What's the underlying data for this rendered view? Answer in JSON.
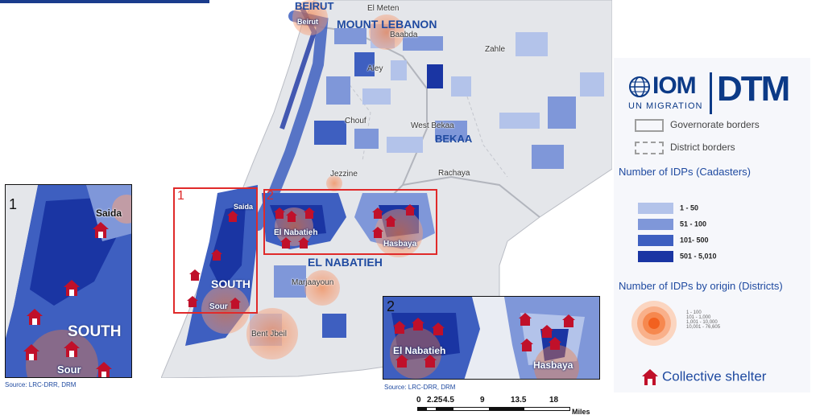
{
  "map_labels": {
    "beirut_top": "BEIRUT",
    "el_meten": "El Meten",
    "mount_lebanon": "MOUNT LEBANON",
    "beirut": "Beirut",
    "baabda": "Baabda",
    "zahle": "Zahle",
    "aley": "Aley",
    "chouf": "Chouf",
    "west_bekaa": "West Bekaa",
    "bekaa": "BEKAA",
    "jezzine": "Jezzine",
    "rachaya": "Rachaya",
    "saida": "Saida",
    "el_nabatieh_town": "El Nabatieh",
    "hasbaya": "Hasbaya",
    "el_nabatieh_gov": "EL NABATIEH",
    "south": "SOUTH",
    "marjaayoun": "Marjaayoun",
    "sour": "Sour",
    "bent_jbeil": "Bent Jbeil"
  },
  "insets": {
    "one": {
      "number": "1",
      "saida": "Saida",
      "south": "SOUTH",
      "sour": "Sour"
    },
    "two": {
      "number": "2",
      "el_nabatieh": "El Nabatieh",
      "hasbaya": "Hasbaya"
    }
  },
  "sources": {
    "left": "Source: LRC-DRR, DRM",
    "right": "Source: LRC-DRR, DRM"
  },
  "scale": {
    "labels": [
      "0",
      "2.25",
      "4.5",
      "9",
      "13.5",
      "18"
    ],
    "unit": "Miles"
  },
  "legend": {
    "iom": "IOM",
    "un_migration": "UN MIGRATION",
    "dtm": "DTM",
    "governorate": "Governorate borders",
    "district": "District borders",
    "cadasters_title": "Number of IDPs (Cadasters)",
    "classes": [
      {
        "label": "1 - 50",
        "color": "#b3c3ea"
      },
      {
        "label": "51 - 100",
        "color": "#7f97d9"
      },
      {
        "label": "101- 500",
        "color": "#3e5fc0"
      },
      {
        "label": "501 - 5,010",
        "color": "#1a35a3"
      }
    ],
    "origin_title": "Number of IDPs by origin (Districts)",
    "origin_classes": [
      "1 - 100",
      "101 - 1,000",
      "1,001 - 10,000",
      "10,001 - 76,605"
    ],
    "shelter": "Collective shelter"
  },
  "colors": {
    "dark_blue": "#1a35a3",
    "accent_red": "#e02a2a",
    "origin_orange": "#f47a3a",
    "land_gray": "#e4e6ea"
  }
}
